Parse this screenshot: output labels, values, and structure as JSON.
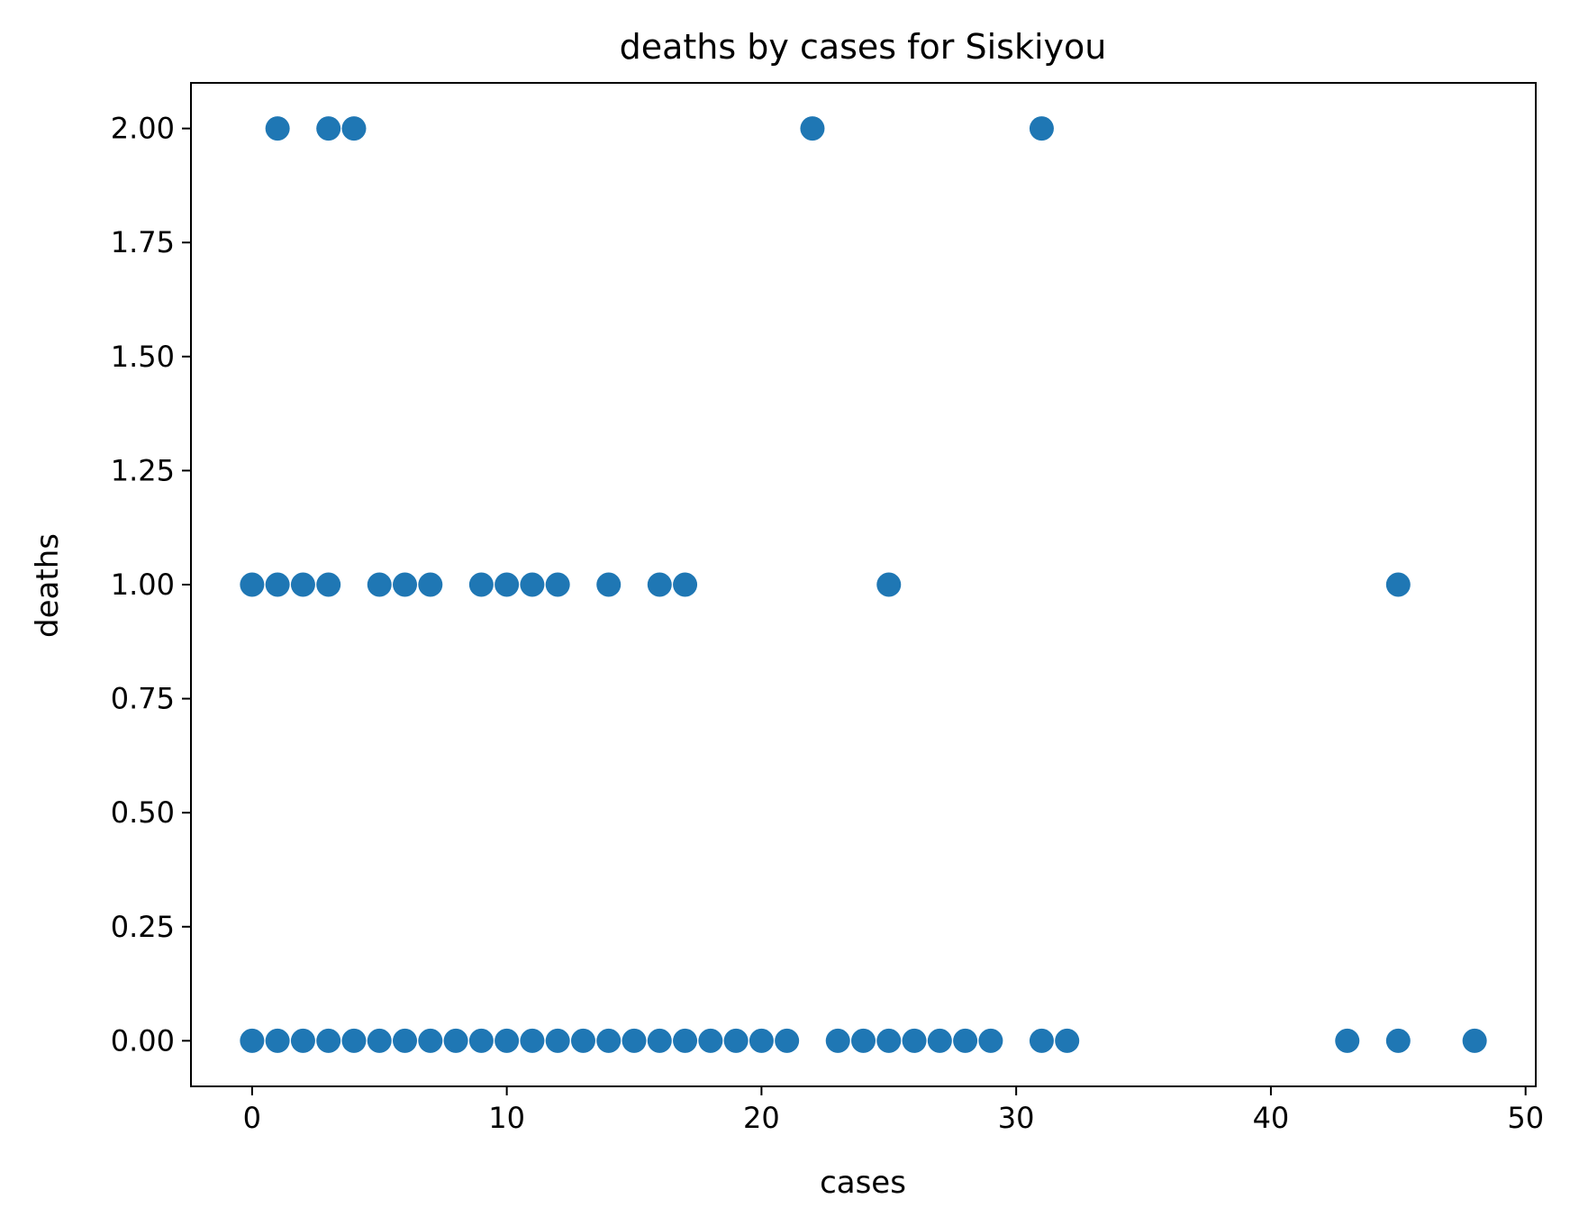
{
  "chart_data": {
    "type": "scatter",
    "title": "deaths by cases for Siskiyou",
    "xlabel": "cases",
    "ylabel": "deaths",
    "xlim": [
      -2.4,
      50.4
    ],
    "ylim": [
      -0.1,
      2.1
    ],
    "xticks": [
      0,
      10,
      20,
      30,
      40,
      50
    ],
    "xtick_labels": [
      "0",
      "10",
      "20",
      "30",
      "40",
      "50"
    ],
    "yticks": [
      0,
      0.25,
      0.5,
      0.75,
      1.0,
      1.25,
      1.5,
      1.75,
      2.0
    ],
    "ytick_labels": [
      "0.00",
      "0.25",
      "0.50",
      "0.75",
      "1.00",
      "1.25",
      "1.50",
      "1.75",
      "2.00"
    ],
    "grid": false,
    "marker_color": "#1f77b4",
    "series": [
      {
        "x": [
          1,
          3,
          4,
          22,
          31,
          0,
          1,
          2,
          3,
          5,
          6,
          7,
          9,
          10,
          11,
          12,
          14,
          16,
          17,
          25,
          45,
          0,
          1,
          2,
          3,
          4,
          5,
          6,
          7,
          8,
          9,
          10,
          11,
          12,
          13,
          14,
          15,
          16,
          17,
          18,
          19,
          20,
          21,
          23,
          24,
          25,
          26,
          27,
          28,
          29,
          31,
          32,
          43,
          45,
          48
        ],
        "y": [
          2,
          2,
          2,
          2,
          2,
          1,
          1,
          1,
          1,
          1,
          1,
          1,
          1,
          1,
          1,
          1,
          1,
          1,
          1,
          1,
          1,
          0,
          0,
          0,
          0,
          0,
          0,
          0,
          0,
          0,
          0,
          0,
          0,
          0,
          0,
          0,
          0,
          0,
          0,
          0,
          0,
          0,
          0,
          0,
          0,
          0,
          0,
          0,
          0,
          0,
          0,
          0,
          0,
          0,
          0
        ]
      }
    ]
  }
}
